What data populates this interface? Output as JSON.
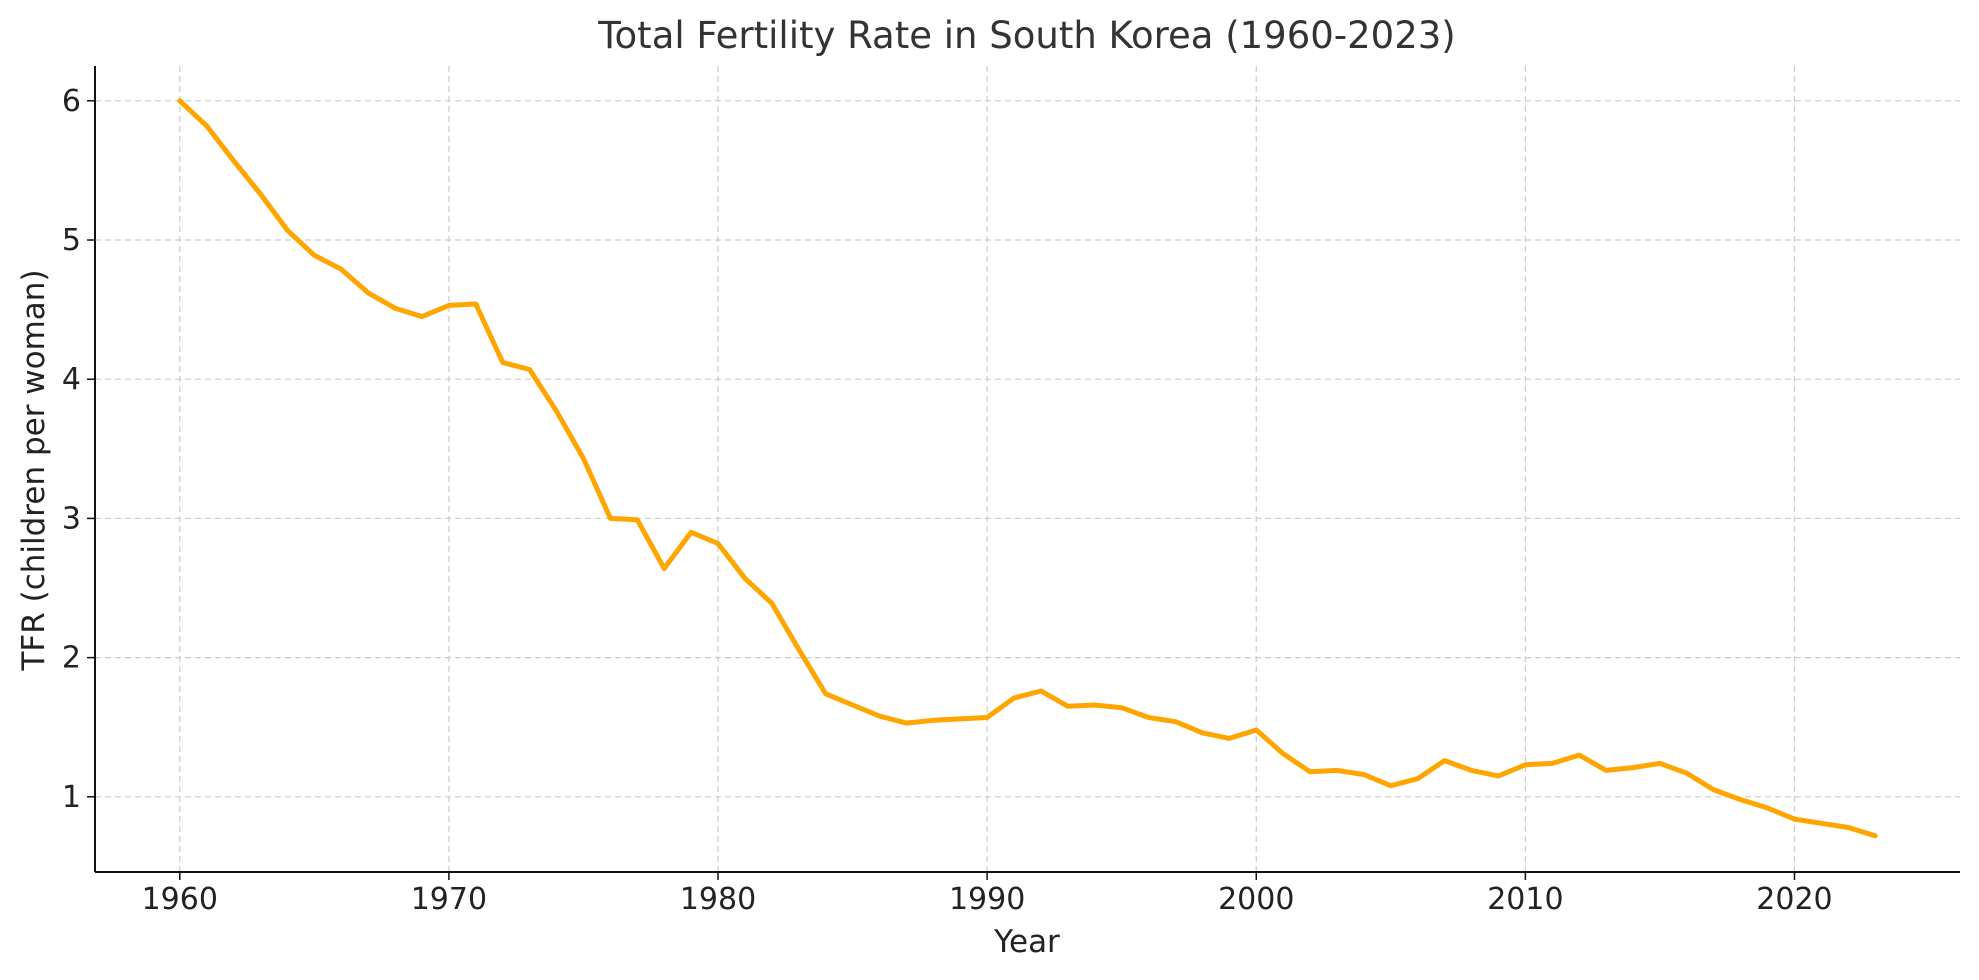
{
  "chart_data": {
    "type": "line",
    "title": "Total Fertility Rate in South Korea (1960-2023)",
    "xlabel": "Year",
    "ylabel": "TFR (children per woman)",
    "xlim": [
      1956.85,
      2026.15
    ],
    "ylim": [
      0.46,
      6.25
    ],
    "x_ticks": [
      1960,
      1970,
      1980,
      1990,
      2000,
      2010,
      2020
    ],
    "y_ticks": [
      1,
      2,
      3,
      4,
      5,
      6
    ],
    "grid": true,
    "series": [
      {
        "name": "TFR",
        "color": "#ffa500",
        "x": [
          1960,
          1961,
          1962,
          1963,
          1964,
          1965,
          1966,
          1967,
          1968,
          1969,
          1970,
          1971,
          1972,
          1973,
          1974,
          1975,
          1976,
          1977,
          1978,
          1979,
          1980,
          1981,
          1982,
          1983,
          1984,
          1985,
          1986,
          1987,
          1988,
          1989,
          1990,
          1991,
          1992,
          1993,
          1994,
          1995,
          1996,
          1997,
          1998,
          1999,
          2000,
          2001,
          2002,
          2003,
          2004,
          2005,
          2006,
          2007,
          2008,
          2009,
          2010,
          2011,
          2012,
          2013,
          2014,
          2015,
          2016,
          2017,
          2018,
          2019,
          2020,
          2021,
          2022,
          2023
        ],
        "values": [
          6.0,
          5.82,
          5.57,
          5.33,
          5.07,
          4.89,
          4.79,
          4.62,
          4.51,
          4.45,
          4.53,
          4.54,
          4.12,
          4.07,
          3.77,
          3.43,
          3.0,
          2.99,
          2.64,
          2.9,
          2.82,
          2.57,
          2.39,
          2.06,
          1.74,
          1.66,
          1.58,
          1.53,
          1.55,
          1.56,
          1.57,
          1.71,
          1.76,
          1.65,
          1.66,
          1.64,
          1.57,
          1.54,
          1.46,
          1.42,
          1.48,
          1.31,
          1.18,
          1.19,
          1.16,
          1.08,
          1.13,
          1.26,
          1.19,
          1.15,
          1.23,
          1.24,
          1.3,
          1.19,
          1.21,
          1.24,
          1.17,
          1.05,
          0.98,
          0.92,
          0.84,
          0.81,
          0.78,
          0.72
        ]
      }
    ]
  }
}
